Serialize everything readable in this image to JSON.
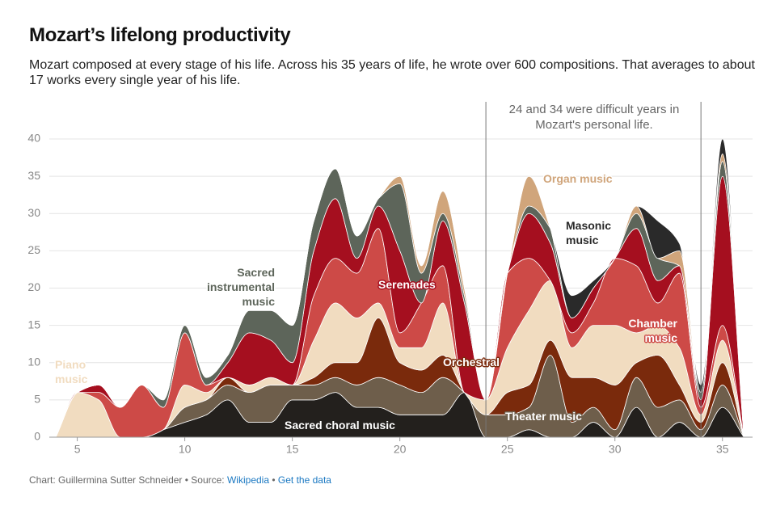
{
  "title": "Mozart’s lifelong productivity",
  "subtitle": "Mozart composed at every stage of his life. Across his 35 years of life, he wrote over 600 compositions. That averages to about 17 works every single year of his life.",
  "chart_data": {
    "type": "stacked-area",
    "x": [
      4,
      5,
      6,
      7,
      8,
      9,
      10,
      11,
      12,
      13,
      14,
      15,
      16,
      17,
      18,
      19,
      20,
      21,
      22,
      23,
      24,
      25,
      26,
      27,
      28,
      29,
      30,
      31,
      32,
      33,
      34,
      35,
      36
    ],
    "series": [
      {
        "name": "Sacred choral music",
        "color": "#23201d",
        "values": [
          0,
          0,
          0,
          0,
          0,
          1,
          2,
          3,
          5,
          2,
          2,
          5,
          5,
          6,
          4,
          4,
          3,
          3,
          3,
          6,
          0,
          0,
          1,
          0,
          0,
          2,
          0,
          4,
          0,
          2,
          0,
          4,
          0
        ]
      },
      {
        "name": "Theater music",
        "color": "#6e5e4b",
        "values": [
          0,
          0,
          0,
          0,
          0,
          0,
          2,
          2,
          2,
          4,
          5,
          2,
          2,
          2,
          3,
          4,
          4,
          3,
          5,
          0,
          3,
          3,
          3,
          11,
          2,
          2,
          1,
          4,
          4,
          3,
          1,
          3,
          0
        ]
      },
      {
        "name": "Orchestral",
        "color": "#7a2a0c",
        "values": [
          0,
          0,
          0,
          0,
          0,
          0,
          0,
          0,
          1,
          0,
          0,
          0,
          1,
          2,
          3,
          8,
          3,
          3,
          3,
          0,
          0,
          3,
          3,
          2,
          6,
          4,
          6,
          2,
          7,
          2,
          1,
          3,
          0
        ]
      },
      {
        "name": "Piano music",
        "color": "#f1dcc0",
        "values": [
          0,
          6,
          5,
          0,
          0,
          0,
          3,
          1,
          0,
          1,
          1,
          0,
          5,
          8,
          6,
          2,
          2,
          3,
          7,
          0,
          2,
          6,
          10,
          8,
          4,
          7,
          8,
          4,
          4,
          5,
          1,
          3,
          0
        ]
      },
      {
        "name": "Chamber music",
        "color": "#cd4a47",
        "values": [
          0,
          0,
          1,
          4,
          7,
          3,
          7,
          1,
          0,
          0,
          0,
          0,
          6,
          6,
          6,
          10,
          2,
          6,
          5,
          0,
          0,
          10,
          7,
          0,
          2,
          3,
          9,
          9,
          3,
          10,
          1,
          2,
          0
        ]
      },
      {
        "name": "Serenades",
        "color": "#a50f1f",
        "values": [
          0,
          0,
          1,
          0,
          0,
          0,
          0,
          0,
          2,
          7,
          5,
          3,
          6,
          8,
          2,
          3,
          11,
          0,
          6,
          12,
          0,
          0,
          6,
          5,
          2,
          2,
          0,
          5,
          3,
          1,
          1,
          20,
          0
        ]
      },
      {
        "name": "Sacred instrumental music",
        "color": "#5d655a",
        "values": [
          0,
          0,
          0,
          0,
          0,
          1,
          1,
          1,
          1,
          3,
          4,
          5,
          4,
          4,
          3,
          1,
          9,
          4,
          1,
          1,
          0,
          0,
          1,
          2,
          0,
          0,
          0,
          2,
          3,
          0,
          1,
          2,
          0
        ]
      },
      {
        "name": "Organ music",
        "color": "#d0a57b",
        "values": [
          0,
          0,
          0,
          0,
          0,
          0,
          0,
          0,
          0,
          0,
          0,
          0,
          0,
          0,
          0,
          0,
          1,
          1,
          3,
          1,
          0,
          0,
          4,
          0,
          0,
          0,
          0,
          1,
          0,
          2,
          0,
          1,
          0
        ]
      },
      {
        "name": "Masonic music",
        "color": "#2a2a2a",
        "values": [
          0,
          0,
          0,
          0,
          0,
          0,
          0,
          0,
          0,
          0,
          0,
          0,
          0,
          0,
          0,
          0,
          0,
          0,
          0,
          0,
          0,
          0,
          0,
          0,
          3,
          1,
          0,
          0,
          5,
          1,
          1,
          2,
          0
        ]
      }
    ],
    "xlim": [
      3.7,
      36.4
    ],
    "xticks": [
      5,
      10,
      15,
      20,
      25,
      30,
      35
    ],
    "ylim": [
      0,
      40
    ],
    "yticks": [
      0,
      5,
      10,
      15,
      20,
      25,
      30,
      35,
      40
    ],
    "grid": true,
    "annotation": {
      "text": "24 and 34 were difficult years in Mozart's personal life.",
      "lines_at": [
        24,
        34
      ]
    }
  },
  "footer": {
    "credit": "Chart: Guillermina Sutter Schneider • Source:",
    "source": "Wikipedia",
    "separator": "•",
    "link": "Get the data"
  }
}
